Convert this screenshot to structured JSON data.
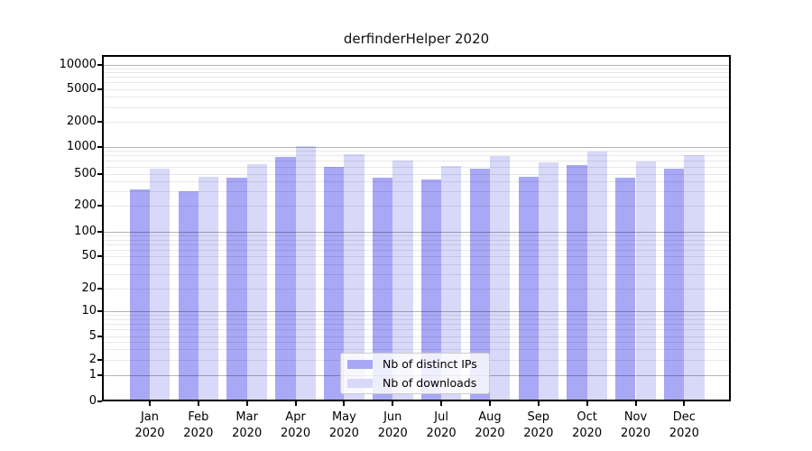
{
  "chart_data": {
    "type": "bar",
    "title": "derfinderHelper 2020",
    "categories": [
      "Jan",
      "Feb",
      "Mar",
      "Apr",
      "May",
      "Jun",
      "Jul",
      "Aug",
      "Sep",
      "Oct",
      "Nov",
      "Dec"
    ],
    "category_year": "2020",
    "series": [
      {
        "name": "Nb of distinct IPs",
        "color": "#a8a8f6",
        "values": [
          320,
          300,
          440,
          760,
          600,
          440,
          420,
          570,
          455,
          630,
          450,
          570
        ]
      },
      {
        "name": "Nb of downloads",
        "color": "#d8d8f9",
        "values": [
          570,
          455,
          640,
          1020,
          830,
          700,
          610,
          780,
          670,
          885,
          690,
          800
        ]
      }
    ],
    "xlabel": "",
    "ylabel": "",
    "y_ticks": [
      0,
      1,
      2,
      5,
      10,
      20,
      50,
      100,
      200,
      500,
      1000,
      2000,
      5000,
      10000
    ],
    "scale": "symlog",
    "ylim": [
      0,
      13000
    ],
    "grid": "major-and-minor-horizontal",
    "legend_position": "inside-bottom-center",
    "frame_color": "#000000",
    "major_grid_color": "#b5b5b5",
    "minor_grid_color": "#e8e8e8"
  }
}
